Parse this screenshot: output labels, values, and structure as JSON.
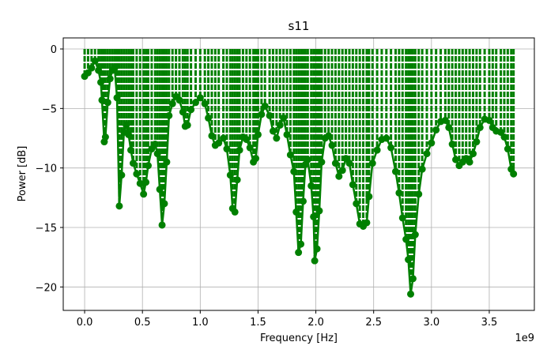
{
  "chart_data": {
    "type": "stem",
    "title": "s11",
    "x_label": "Frequency [Hz]",
    "y_label": "Power [dB]",
    "x_offset_label": "1e9",
    "x": [
      0.0,
      0.03,
      0.06,
      0.09,
      0.12,
      0.14,
      0.15,
      0.17,
      0.18,
      0.2,
      0.22,
      0.24,
      0.26,
      0.28,
      0.3,
      0.32,
      0.34,
      0.36,
      0.38,
      0.4,
      0.42,
      0.45,
      0.48,
      0.51,
      0.53,
      0.55,
      0.58,
      0.61,
      0.63,
      0.65,
      0.67,
      0.69,
      0.71,
      0.73,
      0.76,
      0.79,
      0.82,
      0.85,
      0.87,
      0.89,
      0.92,
      0.96,
      1.0,
      1.04,
      1.07,
      1.1,
      1.13,
      1.16,
      1.2,
      1.23,
      1.26,
      1.28,
      1.3,
      1.32,
      1.34,
      1.37,
      1.4,
      1.43,
      1.46,
      1.48,
      1.5,
      1.53,
      1.56,
      1.6,
      1.63,
      1.66,
      1.69,
      1.72,
      1.75,
      1.78,
      1.81,
      1.83,
      1.85,
      1.87,
      1.89,
      1.91,
      1.93,
      1.96,
      1.98,
      1.99,
      2.01,
      2.03,
      2.05,
      2.08,
      2.11,
      2.14,
      2.17,
      2.2,
      2.23,
      2.26,
      2.29,
      2.32,
      2.35,
      2.38,
      2.41,
      2.44,
      2.46,
      2.49,
      2.53,
      2.57,
      2.61,
      2.65,
      2.69,
      2.72,
      2.75,
      2.78,
      2.8,
      2.82,
      2.84,
      2.86,
      2.89,
      2.92,
      2.96,
      3.0,
      3.04,
      3.08,
      3.12,
      3.15,
      3.18,
      3.21,
      3.24,
      3.27,
      3.3,
      3.33,
      3.36,
      3.39,
      3.42,
      3.46,
      3.5,
      3.53,
      3.56,
      3.6,
      3.63,
      3.66,
      3.69,
      3.71
    ],
    "series": [
      {
        "color": "#008000",
        "values": [
          -2.3,
          -2.0,
          -1.6,
          -1.0,
          -1.8,
          -2.8,
          -4.3,
          -7.8,
          -7.4,
          -4.5,
          -2.5,
          -1.8,
          -1.6,
          -4.1,
          -13.2,
          -10.6,
          -7.0,
          -6.4,
          -7.2,
          -8.5,
          -9.6,
          -10.5,
          -11.3,
          -12.2,
          -11.2,
          -9.8,
          -8.4,
          -8.0,
          -8.8,
          -11.8,
          -14.8,
          -13.0,
          -9.5,
          -5.6,
          -4.6,
          -4.0,
          -4.3,
          -5.3,
          -6.5,
          -6.4,
          -5.1,
          -4.5,
          -4.1,
          -4.6,
          -5.8,
          -7.3,
          -8.1,
          -7.9,
          -7.5,
          -8.4,
          -10.6,
          -13.4,
          -13.7,
          -11.0,
          -8.5,
          -7.4,
          -7.6,
          -8.3,
          -9.5,
          -9.2,
          -7.2,
          -5.5,
          -4.8,
          -5.6,
          -6.9,
          -7.5,
          -6.4,
          -5.8,
          -7.2,
          -8.9,
          -10.3,
          -13.7,
          -17.1,
          -16.4,
          -12.8,
          -9.7,
          -9.3,
          -11.5,
          -14.1,
          -17.8,
          -16.8,
          -13.6,
          -9.5,
          -7.5,
          -7.3,
          -8.1,
          -9.6,
          -10.7,
          -10.2,
          -9.2,
          -9.6,
          -11.4,
          -13.0,
          -14.7,
          -14.9,
          -14.6,
          -12.4,
          -9.6,
          -8.5,
          -7.6,
          -7.5,
          -8.3,
          -10.3,
          -12.1,
          -14.2,
          -16.0,
          -17.7,
          -20.6,
          -19.3,
          -15.6,
          -12.2,
          -10.1,
          -8.8,
          -7.9,
          -6.8,
          -6.1,
          -6.0,
          -6.6,
          -8.0,
          -9.3,
          -9.8,
          -9.5,
          -9.2,
          -9.5,
          -8.8,
          -7.8,
          -6.6,
          -5.9,
          -6.0,
          -6.6,
          -6.9,
          -7.0,
          -7.4,
          -8.4,
          -10.1,
          -10.5
        ]
      }
    ],
    "xlim": [
      -0.185,
      3.89
    ],
    "ylim": [
      -21.97,
      0.93
    ],
    "xticks": [
      {
        "value": 0,
        "label": "0.0"
      },
      0.5,
      {
        "value": 1,
        "label": "1.0"
      },
      1.5,
      {
        "value": 2,
        "label": "2.0"
      },
      2.5,
      {
        "value": 3,
        "label": "3.0"
      },
      3.5
    ],
    "yticks": [
      0,
      {
        "value": -5,
        "label": "−5"
      },
      {
        "value": -10,
        "label": "−10"
      },
      {
        "value": -15,
        "label": "−15"
      },
      {
        "value": -20,
        "label": "−20"
      }
    ],
    "grid": true
  }
}
